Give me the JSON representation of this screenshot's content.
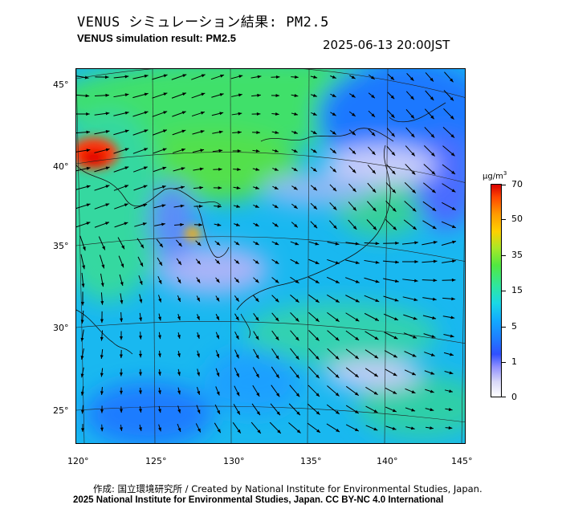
{
  "title_ja": "VENUS シミュレーション結果: PM2.5",
  "title_en": "VENUS simulation result: PM2.5",
  "timestamp": "2025-06-13 20:00JST",
  "map": {
    "lat_labels": [
      "45°",
      "40°",
      "35°",
      "30°",
      "25°"
    ],
    "lon_labels": [
      "120°",
      "125°",
      "130°",
      "135°",
      "140°",
      "145°"
    ]
  },
  "colorbar": {
    "unit_base": "μg/m",
    "unit_exp": "3",
    "ticks": [
      "70",
      "50",
      "35",
      "15",
      "5",
      "1",
      "0"
    ],
    "colors": [
      "#ffffff",
      "#9090ff",
      "#1f7bff",
      "#1ad8e6",
      "#52e840",
      "#ffd000",
      "#ff4800",
      "#d80000"
    ]
  },
  "credit": {
    "line1": "作成: 国立環境研究所 / Created by National Institute for Environmental Studies, Japan.",
    "line2": "2025 National Institute for Environmental Studies, Japan. CC BY-NC 4.0 International"
  }
}
